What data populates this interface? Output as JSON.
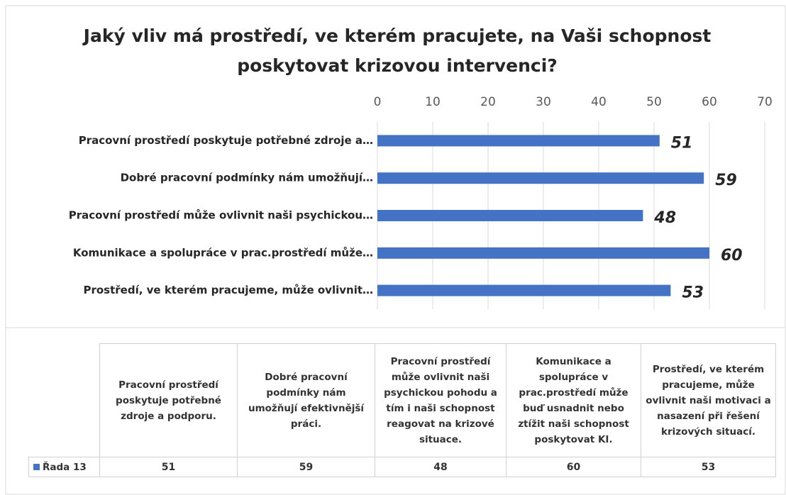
{
  "chart_data": {
    "type": "barh",
    "title": "Jaký vliv má prostředí, ve kterém pracujete, na Vaši schopnost poskytovat krizovou intervenci?",
    "categories": [
      "Pracovní prostředí poskytuje potřebné zdroje a…",
      "Dobré pracovní podmínky nám umožňují…",
      "Pracovní prostředí může ovlivnit naši psychickou…",
      "Komunikace a spolupráce v prac.prostředí může…",
      "Prostředí, ve kterém pracujeme, může ovlivnit…"
    ],
    "series": [
      {
        "name": "Řada 13",
        "color": "#4472c4",
        "values": [
          51,
          59,
          48,
          60,
          53
        ]
      }
    ],
    "xlim": [
      0,
      70
    ],
    "xticks": [
      0,
      10,
      20,
      30,
      40,
      50,
      60,
      70
    ],
    "grid": true,
    "table_headers": [
      "Pracovní prostředí poskytuje potřebné zdroje a podporu.",
      "Dobré pracovní podmínky nám umožňují efektivnější práci.",
      "Pracovní prostředí může ovlivnit naši psychickou pohodu a tím i naši schopnost reagovat na krizové situace.",
      "Komunikace a spolupráce v prac.prostředí může buď usnadnit nebo ztížit naši schopnost poskytovat KI.",
      "Prostředí, ve kterém pracujeme, může ovlivnit naši motivaci a nasazení při řešení krizových situací."
    ]
  }
}
